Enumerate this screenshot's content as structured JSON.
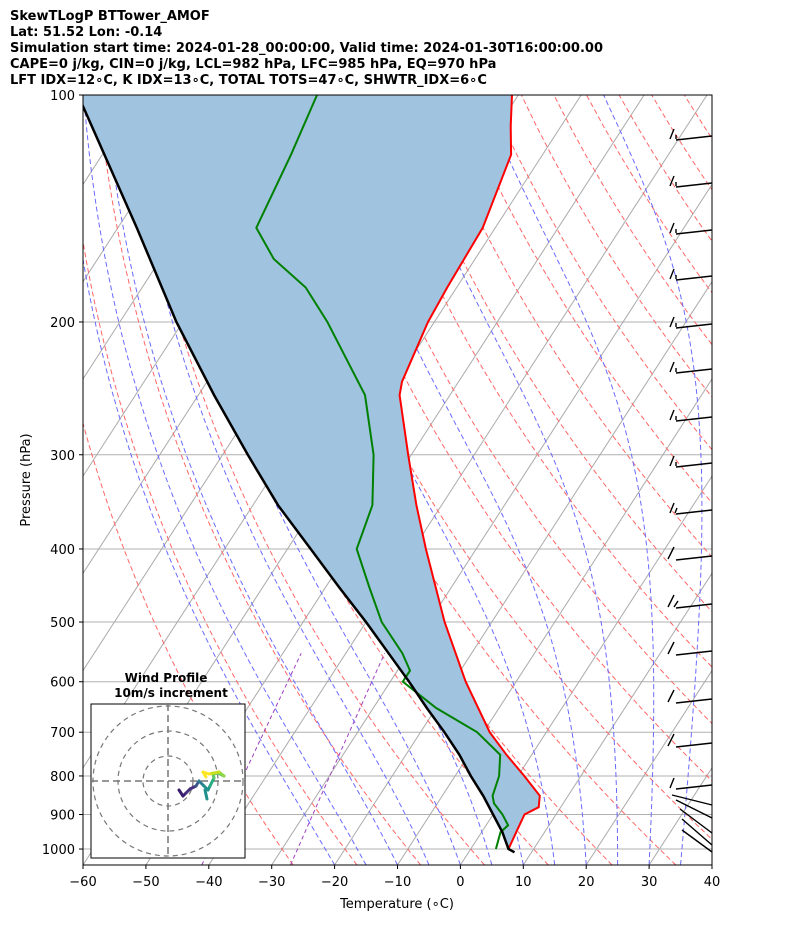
{
  "header": {
    "line1": "SkewTLogP BTTower_AMOF",
    "line2": "Lat: 51.52   Lon: -0.14",
    "line3": "Simulation start time: 2024-01-28_00:00:00, Valid time: 2024-01-30T16:00:00.00",
    "line4": "CAPE=0 j/kg, CIN=0 j/kg, LCL=982 hPa, LFC=985 hPa, EQ=970 hPa",
    "line5": "LFT IDX=12∘C, K IDX=13∘C, TOTAL TOTS=47∘C, SHWTR_IDX=6∘C"
  },
  "chart_data": {
    "type": "line",
    "subtype": "skew-t log-p",
    "xlabel": "Temperature (∘C)",
    "ylabel": "Pressure (hPa)",
    "xlim": [
      -60,
      40
    ],
    "ylim": [
      1050,
      100
    ],
    "y_scale": "log",
    "grid": true,
    "x_ticks": [
      "−60",
      "−50",
      "−40",
      "−30",
      "−20",
      "−10",
      "0",
      "10",
      "20",
      "30",
      "40"
    ],
    "x_tick_values": [
      -60,
      -50,
      -40,
      -30,
      -20,
      -10,
      0,
      10,
      20,
      30,
      40
    ],
    "y_ticks": [
      "100",
      "200",
      "300",
      "400",
      "500",
      "600",
      "700",
      "800",
      "900",
      "1000"
    ],
    "y_tick_values": [
      100,
      200,
      300,
      400,
      500,
      600,
      700,
      800,
      900,
      1000
    ],
    "colors": {
      "temperature": "#ff0000",
      "dewpoint": "#008000",
      "parcel": "#000000",
      "shade": "#a0c4df",
      "isotherm": "#aaaaaa",
      "dry_adiabat": "#ff6666",
      "moist_adiabat": "#6a6aff",
      "mixing_ratio": "#a040c0",
      "windbarb": "#000000"
    },
    "series": [
      {
        "id": "temperature",
        "pressure": [
          1000,
          950,
          900,
          880,
          850,
          800,
          750,
          700,
          600,
          500,
          400,
          350,
          300,
          250,
          240,
          200,
          180,
          150,
          120,
          110,
          100
        ],
        "values": [
          6,
          5.5,
          5,
          6.5,
          5.5,
          1,
          -4,
          -9,
          -18,
          -27.5,
          -38,
          -44,
          -50.5,
          -58,
          -59,
          -61,
          -61.5,
          -62,
          -65,
          -68,
          -71
        ]
      },
      {
        "id": "dewpoint",
        "pressure": [
          1000,
          950,
          930,
          900,
          870,
          850,
          800,
          750,
          700,
          650,
          600,
          580,
          550,
          500,
          450,
          400,
          350,
          300,
          250,
          200,
          180,
          165,
          150,
          120,
          100
        ],
        "values": [
          4,
          3,
          3.5,
          1.5,
          -1,
          -2,
          -3,
          -5,
          -11,
          -20,
          -28,
          -28,
          -31,
          -37.5,
          -43,
          -49,
          -51,
          -56,
          -63.5,
          -77,
          -84,
          -92,
          -98,
          -100,
          -102
        ]
      },
      {
        "id": "parcel",
        "pressure": [
          1010,
          1000,
          950,
          900,
          850,
          800,
          750,
          700,
          650,
          600,
          550,
          500,
          450,
          400,
          350,
          300,
          250,
          200,
          150,
          100
        ],
        "values": [
          7.3,
          6,
          3.3,
          0,
          -3.5,
          -7.5,
          -11.5,
          -16.2,
          -21.5,
          -27,
          -33.2,
          -40,
          -47.8,
          -56.3,
          -66,
          -76,
          -87.5,
          -101,
          -117,
          -140
        ]
      }
    ],
    "wind_profile_inset": {
      "title_line1": "Wind Profile",
      "title_line2": "10m/s increment",
      "ring_count": 3
    }
  }
}
